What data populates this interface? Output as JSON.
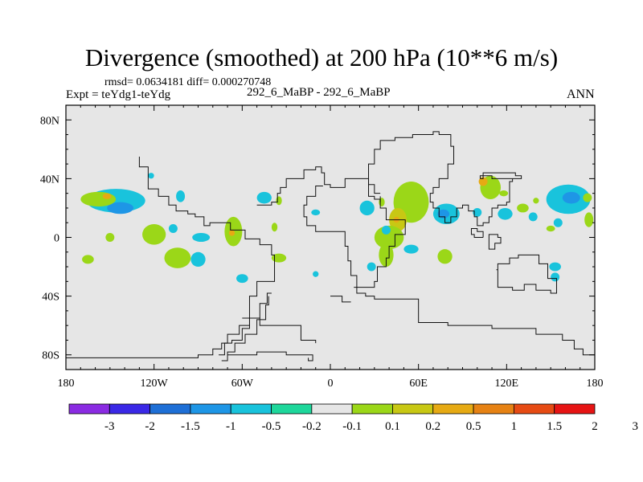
{
  "chart_data": {
    "type": "heatmap",
    "title": "Divergence (smoothed) at 200 hPa (10**6 m/s)",
    "stats_line": "rmsd= 0.0634181 diff= 0.000270748",
    "left_label": "Expt = teYdg1-teYdg",
    "center_label": "292_6_MaBP - 292_6_MaBP",
    "right_label": "ANN",
    "x_axis": {
      "range": [
        -180,
        180
      ],
      "ticks": [
        {
          "value": -180,
          "label": "180"
        },
        {
          "value": -120,
          "label": "120W"
        },
        {
          "value": -60,
          "label": "60W"
        },
        {
          "value": 0,
          "label": "0"
        },
        {
          "value": 60,
          "label": "60E"
        },
        {
          "value": 120,
          "label": "120E"
        },
        {
          "value": 180,
          "label": "180"
        }
      ]
    },
    "y_axis": {
      "range": [
        -90,
        90
      ],
      "ticks": [
        {
          "value": 80,
          "label": "80N"
        },
        {
          "value": 40,
          "label": "40N"
        },
        {
          "value": 0,
          "label": "0"
        },
        {
          "value": -40,
          "label": "40S"
        },
        {
          "value": -80,
          "label": "80S"
        }
      ]
    },
    "colorbar": {
      "colors": [
        "#8a2be2",
        "#3a28e6",
        "#1e6fd6",
        "#1e96e6",
        "#19c3dc",
        "#1ed79b",
        "#e6e6e6",
        "#9bd718",
        "#c8c814",
        "#e6aa14",
        "#e68214",
        "#e64b14",
        "#e61414"
      ],
      "labels": [
        "-3",
        "-2",
        "-1.5",
        "-1",
        "-0.5",
        "-0.2",
        "-0.1",
        "0.1",
        "0.2",
        "0.5",
        "1",
        "1.5",
        "2",
        "3"
      ]
    },
    "field_anomalies": [
      {
        "lon": -146,
        "lat": 25,
        "rlon": 20,
        "rlat": 8,
        "class": "-0.2"
      },
      {
        "lon": -143,
        "lat": 20,
        "rlon": 9,
        "rlat": 4,
        "class": "-0.5"
      },
      {
        "lon": -158,
        "lat": 26,
        "rlon": 12,
        "rlat": 5,
        "class": "0.1"
      },
      {
        "lon": -152,
        "lat": 28,
        "rlon": 3,
        "rlat": 2,
        "class": "0.5"
      },
      {
        "lon": -122,
        "lat": 42,
        "rlon": 2,
        "rlat": 2,
        "class": "-0.2"
      },
      {
        "lon": -120,
        "lat": 2,
        "rlon": 8,
        "rlat": 7,
        "class": "0.1"
      },
      {
        "lon": -107,
        "lat": 6,
        "rlon": 3,
        "rlat": 3,
        "class": "-0.2"
      },
      {
        "lon": -102,
        "lat": 28,
        "rlon": 3,
        "rlat": 4,
        "class": "-0.2"
      },
      {
        "lon": -88,
        "lat": 0,
        "rlon": 6,
        "rlat": 3,
        "class": "-0.2"
      },
      {
        "lon": -66,
        "lat": 4,
        "rlon": 6,
        "rlat": 10,
        "class": "0.1"
      },
      {
        "lon": -67,
        "lat": 3,
        "rlon": 2,
        "rlat": 2,
        "class": "0.5"
      },
      {
        "lon": -104,
        "lat": -14,
        "rlon": 9,
        "rlat": 7,
        "class": "0.1"
      },
      {
        "lon": -150,
        "lat": 0,
        "rlon": 3,
        "rlat": 3,
        "class": "0.1"
      },
      {
        "lon": -165,
        "lat": -15,
        "rlon": 4,
        "rlat": 3,
        "class": "0.1"
      },
      {
        "lon": -90,
        "lat": -15,
        "rlon": 5,
        "rlat": 5,
        "class": "-0.2"
      },
      {
        "lon": -60,
        "lat": -28,
        "rlon": 4,
        "rlat": 3,
        "class": "-0.2"
      },
      {
        "lon": -35,
        "lat": -14,
        "rlon": 5,
        "rlat": 3,
        "class": "0.1"
      },
      {
        "lon": -45,
        "lat": 27,
        "rlon": 5,
        "rlat": 4,
        "class": "-0.2"
      },
      {
        "lon": -38,
        "lat": 7,
        "rlon": 2,
        "rlat": 3,
        "class": "0.1"
      },
      {
        "lon": -10,
        "lat": 17,
        "rlon": 3,
        "rlat": 2,
        "class": "-0.2"
      },
      {
        "lon": -35,
        "lat": 25,
        "rlon": 2,
        "rlat": 3,
        "class": "0.1"
      },
      {
        "lon": -10,
        "lat": -25,
        "rlon": 2,
        "rlat": 2,
        "class": "-0.2"
      },
      {
        "lon": 55,
        "lat": 24,
        "rlon": 12,
        "rlat": 14,
        "class": "0.1"
      },
      {
        "lon": 46,
        "lat": 12,
        "rlon": 6,
        "rlat": 8,
        "class": "0.2"
      },
      {
        "lon": 45,
        "lat": 12,
        "rlon": 2,
        "rlat": 2,
        "class": "0.5"
      },
      {
        "lon": 40,
        "lat": 0,
        "rlon": 10,
        "rlat": 8,
        "class": "0.1"
      },
      {
        "lon": 38,
        "lat": -12,
        "rlon": 5,
        "rlat": 8,
        "class": "0.1"
      },
      {
        "lon": 28,
        "lat": -20,
        "rlon": 3,
        "rlat": 3,
        "class": "-0.2"
      },
      {
        "lon": 25,
        "lat": 20,
        "rlon": 5,
        "rlat": 5,
        "class": "-0.2"
      },
      {
        "lon": 35,
        "lat": 24,
        "rlon": 2,
        "rlat": 3,
        "class": "0.1"
      },
      {
        "lon": 38,
        "lat": 5,
        "rlon": 3,
        "rlat": 3,
        "class": "-0.2"
      },
      {
        "lon": 55,
        "lat": -8,
        "rlon": 5,
        "rlat": 3,
        "class": "-0.2"
      },
      {
        "lon": 79,
        "lat": 16,
        "rlon": 9,
        "rlat": 7,
        "class": "-0.2"
      },
      {
        "lon": 77,
        "lat": 16,
        "rlon": 4,
        "rlat": 3,
        "class": "-0.5"
      },
      {
        "lon": 78,
        "lat": -13,
        "rlon": 5,
        "rlat": 5,
        "class": "0.1"
      },
      {
        "lon": 109,
        "lat": 34,
        "rlon": 7,
        "rlat": 8,
        "class": "0.1"
      },
      {
        "lon": 104,
        "lat": 38,
        "rlon": 3,
        "rlat": 3,
        "class": "0.5"
      },
      {
        "lon": 119,
        "lat": 16,
        "rlon": 5,
        "rlat": 4,
        "class": "-0.2"
      },
      {
        "lon": 100,
        "lat": 17,
        "rlon": 3,
        "rlat": 3,
        "class": "-0.2"
      },
      {
        "lon": 131,
        "lat": 20,
        "rlon": 4,
        "rlat": 3,
        "class": "0.1"
      },
      {
        "lon": 118,
        "lat": 30,
        "rlon": 3,
        "rlat": 2,
        "class": "0.1"
      },
      {
        "lon": 162,
        "lat": 26,
        "rlon": 15,
        "rlat": 10,
        "class": "-0.2"
      },
      {
        "lon": 164,
        "lat": 27,
        "rlon": 6,
        "rlat": 4,
        "class": "-0.5"
      },
      {
        "lon": 155,
        "lat": 10,
        "rlon": 3,
        "rlat": 3,
        "class": "-0.2"
      },
      {
        "lon": 176,
        "lat": 12,
        "rlon": 3,
        "rlat": 5,
        "class": "0.1"
      },
      {
        "lon": 153,
        "lat": -20,
        "rlon": 4,
        "rlat": 3,
        "class": "-0.2"
      },
      {
        "lon": 153,
        "lat": -27,
        "rlon": 3,
        "rlat": 3,
        "class": "-0.2"
      },
      {
        "lon": 140,
        "lat": 25,
        "rlon": 2,
        "rlat": 2,
        "class": "0.1"
      },
      {
        "lon": 175,
        "lat": 27,
        "rlon": 3,
        "rlat": 3,
        "class": "0.1"
      },
      {
        "lon": 150,
        "lat": 6,
        "rlon": 3,
        "rlat": 2,
        "class": "0.1"
      },
      {
        "lon": 138,
        "lat": 14,
        "rlon": 3,
        "rlat": 3,
        "class": "-0.2"
      }
    ],
    "coastlines": [
      [
        [
          -180,
          -82
        ],
        [
          -100,
          -82
        ],
        [
          -90,
          -80
        ],
        [
          -80,
          -76
        ],
        [
          -74,
          -72
        ],
        [
          -70,
          -66
        ],
        [
          -62,
          -60
        ],
        [
          -55,
          -55
        ],
        [
          -55,
          -40
        ],
        [
          -50,
          -30
        ],
        [
          -38,
          -12
        ],
        [
          -40,
          -5
        ],
        [
          -48,
          -1
        ],
        [
          -58,
          5
        ],
        [
          -68,
          10
        ],
        [
          -76,
          10
        ],
        [
          -82,
          8
        ],
        [
          -86,
          14
        ],
        [
          -92,
          16
        ],
        [
          -97,
          18
        ],
        [
          -105,
          22
        ],
        [
          -110,
          28
        ],
        [
          -117,
          33
        ],
        [
          -124,
          40
        ],
        [
          -124,
          48
        ],
        [
          -130,
          55
        ]
      ],
      [
        [
          -60,
          -55
        ],
        [
          -48,
          -60
        ],
        [
          -20,
          -70
        ],
        [
          -10,
          -72
        ]
      ],
      [
        [
          -76,
          -80
        ],
        [
          -72,
          -72
        ],
        [
          -67,
          -70
        ],
        [
          -60,
          -62
        ],
        [
          -55,
          -55
        ],
        [
          -48,
          -45
        ],
        [
          -43,
          -38
        ],
        [
          -40,
          -38
        ]
      ],
      [
        [
          -74,
          -84
        ],
        [
          -70,
          -78
        ],
        [
          -65,
          -72
        ],
        [
          -58,
          -66
        ],
        [
          -50,
          -56
        ],
        [
          -44,
          -46
        ],
        [
          -42,
          -40
        ]
      ],
      [
        [
          -70,
          -80
        ],
        [
          -50,
          -78
        ],
        [
          -30,
          -80
        ],
        [
          -12,
          -84
        ],
        [
          -15,
          -82
        ]
      ],
      [
        [
          -50,
          22
        ],
        [
          -44,
          22
        ],
        [
          -40,
          24
        ],
        [
          -36,
          30
        ],
        [
          -34,
          34
        ],
        [
          -30,
          40
        ],
        [
          -24,
          40
        ],
        [
          -18,
          46
        ],
        [
          -10,
          48
        ],
        [
          -6,
          44
        ],
        [
          -4,
          36
        ],
        [
          0,
          34
        ],
        [
          10,
          40
        ],
        [
          20,
          40
        ],
        [
          26,
          28
        ],
        [
          30,
          26
        ],
        [
          34,
          24
        ]
      ],
      [
        [
          -5,
          35
        ],
        [
          -10,
          28
        ],
        [
          -16,
          22
        ],
        [
          -18,
          14
        ],
        [
          -16,
          8
        ],
        [
          -10,
          4
        ],
        [
          -2,
          4
        ],
        [
          6,
          4
        ],
        [
          10,
          2
        ],
        [
          10,
          -6
        ],
        [
          12,
          -16
        ],
        [
          14,
          -26
        ],
        [
          18,
          -34
        ],
        [
          24,
          -34
        ],
        [
          30,
          -30
        ],
        [
          32,
          -20
        ],
        [
          38,
          -14
        ],
        [
          40,
          -6
        ],
        [
          44,
          2
        ],
        [
          51,
          12
        ],
        [
          44,
          12
        ],
        [
          38,
          20
        ],
        [
          34,
          28
        ]
      ],
      [
        [
          34,
          30
        ],
        [
          30,
          36
        ],
        [
          26,
          50
        ],
        [
          30,
          60
        ],
        [
          34,
          66
        ],
        [
          44,
          68
        ],
        [
          56,
          70
        ],
        [
          70,
          72
        ],
        [
          74,
          70
        ],
        [
          82,
          62
        ],
        [
          84,
          50
        ],
        [
          80,
          40
        ],
        [
          74,
          34
        ],
        [
          70,
          30
        ],
        [
          68,
          24
        ],
        [
          70,
          20
        ],
        [
          74,
          14
        ],
        [
          78,
          10
        ],
        [
          82,
          14
        ],
        [
          86,
          20
        ],
        [
          90,
          22
        ],
        [
          94,
          18
        ],
        [
          98,
          14
        ],
        [
          100,
          8
        ],
        [
          104,
          10
        ],
        [
          108,
          14
        ],
        [
          110,
          20
        ],
        [
          114,
          22
        ],
        [
          120,
          24
        ],
        [
          122,
          30
        ],
        [
          122,
          38
        ],
        [
          124,
          40
        ]
      ],
      [
        [
          102,
          40
        ],
        [
          104,
          44
        ],
        [
          120,
          44
        ],
        [
          126,
          42
        ],
        [
          130,
          40
        ],
        [
          122,
          40
        ],
        [
          110,
          42
        ],
        [
          102,
          40
        ]
      ],
      [
        [
          113,
          -22
        ],
        [
          114,
          -34
        ],
        [
          124,
          -36
        ],
        [
          132,
          -32
        ],
        [
          140,
          -36
        ],
        [
          150,
          -38
        ],
        [
          154,
          -28
        ],
        [
          148,
          -18
        ],
        [
          142,
          -12
        ],
        [
          136,
          -12
        ],
        [
          128,
          -14
        ],
        [
          122,
          -18
        ],
        [
          114,
          -22
        ]
      ],
      [
        [
          16,
          -34
        ],
        [
          18,
          -38
        ],
        [
          24,
          -40
        ],
        [
          30,
          -42
        ],
        [
          60,
          -58
        ],
        [
          80,
          -60
        ],
        [
          90,
          -60
        ],
        [
          110,
          -62
        ],
        [
          140,
          -66
        ],
        [
          158,
          -70
        ],
        [
          166,
          -76
        ],
        [
          172,
          -80
        ],
        [
          180,
          -82
        ]
      ],
      [
        [
          0,
          -40
        ],
        [
          8,
          -44
        ],
        [
          14,
          -44
        ]
      ],
      [
        [
          108,
          -2
        ],
        [
          108,
          -8
        ],
        [
          112,
          -4
        ],
        [
          116,
          0
        ],
        [
          114,
          2
        ],
        [
          108,
          -2
        ]
      ],
      [
        [
          104,
          0
        ],
        [
          98,
          2
        ],
        [
          96,
          6
        ],
        [
          100,
          4
        ],
        [
          104,
          0
        ]
      ]
    ]
  }
}
